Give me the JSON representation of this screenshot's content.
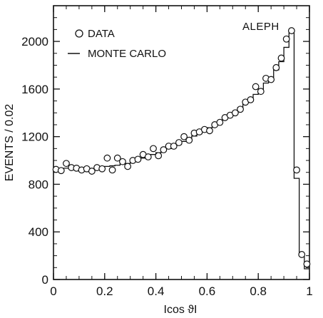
{
  "chart_data": {
    "type": "scatter",
    "xlabel": "Icos ϑI",
    "ylabel": "EVENTS / 0.02",
    "annotation": "ALEPH",
    "xlim": [
      0,
      1
    ],
    "ylim": [
      0,
      2300
    ],
    "x_ticks": [
      "0",
      "0.2",
      "0.4",
      "0.6",
      "0.8",
      "1"
    ],
    "y_ticks": [
      "0",
      "400",
      "800",
      "1200",
      "1600",
      "2000"
    ],
    "legend_position": "top-left",
    "bin_width": 0.02,
    "x_centers": [
      0.01,
      0.03,
      0.05,
      0.07,
      0.09,
      0.11,
      0.13,
      0.15,
      0.17,
      0.19,
      0.21,
      0.23,
      0.25,
      0.27,
      0.29,
      0.31,
      0.33,
      0.35,
      0.37,
      0.39,
      0.41,
      0.43,
      0.45,
      0.47,
      0.49,
      0.51,
      0.53,
      0.55,
      0.57,
      0.59,
      0.61,
      0.63,
      0.65,
      0.67,
      0.69,
      0.71,
      0.73,
      0.75,
      0.77,
      0.79,
      0.81,
      0.83,
      0.85,
      0.87,
      0.89,
      0.91,
      0.93,
      0.95,
      0.97,
      0.99
    ],
    "series": [
      {
        "name": "DATA",
        "style": "open-circles",
        "values": [
          925,
          915,
          975,
          940,
          935,
          920,
          930,
          910,
          940,
          930,
          1020,
          920,
          1020,
          990,
          950,
          1000,
          1010,
          1050,
          1030,
          1100,
          1040,
          1090,
          1120,
          1120,
          1150,
          1200,
          1170,
          1230,
          1240,
          1260,
          1250,
          1300,
          1320,
          1360,
          1380,
          1400,
          1430,
          1490,
          1510,
          1620,
          1580,
          1690,
          1680,
          1780,
          1860,
          2020,
          2090,
          920,
          210,
          130
        ]
      },
      {
        "name": "MONTE CARLO",
        "style": "histogram",
        "values": [
          915,
          920,
          935,
          935,
          930,
          925,
          925,
          920,
          925,
          930,
          950,
          955,
          960,
          970,
          975,
          990,
          1005,
          1020,
          1035,
          1050,
          1065,
          1080,
          1100,
          1115,
          1135,
          1160,
          1185,
          1205,
          1225,
          1250,
          1275,
          1300,
          1325,
          1355,
          1380,
          1410,
          1445,
          1480,
          1520,
          1555,
          1600,
          1650,
          1700,
          1760,
          1830,
          1950,
          2070,
          850,
          200,
          90
        ]
      }
    ]
  }
}
